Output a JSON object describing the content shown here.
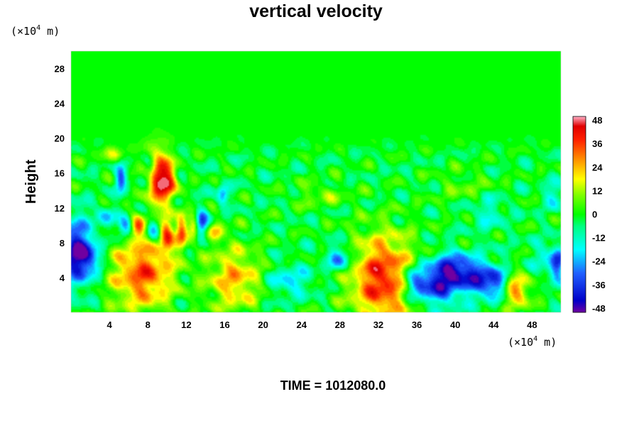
{
  "chart_data": {
    "type": "heatmap",
    "title": "vertical velocity",
    "ylabel": "Height",
    "xlabel": "",
    "y_unit": {
      "prefix": "(×10",
      "exp": "4",
      "suffix": " m)"
    },
    "x_unit": {
      "prefix": "(×10",
      "exp": "4",
      "suffix": " m)"
    },
    "footer": "TIME = 1012080.0",
    "xlim": [
      0,
      51
    ],
    "ylim": [
      0,
      30
    ],
    "x_ticks": [
      4,
      8,
      12,
      16,
      20,
      24,
      28,
      32,
      36,
      40,
      44,
      48
    ],
    "y_ticks": [
      4,
      8,
      12,
      16,
      20,
      24,
      28
    ],
    "colorbar": {
      "range": [
        -50,
        50
      ],
      "ticks": [
        48,
        36,
        24,
        12,
        0,
        -12,
        -24,
        -36,
        -48
      ]
    },
    "features": [
      {
        "x": 7.5,
        "y": 4.5,
        "value": 36,
        "rx": 2.3,
        "ry": 3.0
      },
      {
        "x": 17,
        "y": 3.8,
        "value": 26,
        "rx": 2.0,
        "ry": 2.6
      },
      {
        "x": 32.5,
        "y": 3.8,
        "value": 42,
        "rx": 2.4,
        "ry": 3.6
      },
      {
        "x": 46.3,
        "y": 2.5,
        "value": 30,
        "rx": 1.1,
        "ry": 1.4
      },
      {
        "x": 9,
        "y": 15.5,
        "value": 46,
        "rx": 0.8,
        "ry": 2.2
      },
      {
        "x": 10.3,
        "y": 15,
        "value": 32,
        "rx": 0.6,
        "ry": 1.6
      },
      {
        "x": 7,
        "y": 9.8,
        "value": 32,
        "rx": 0.5,
        "ry": 1.0
      },
      {
        "x": 10,
        "y": 9.0,
        "value": 36,
        "rx": 0.5,
        "ry": 1.5
      },
      {
        "x": 11.5,
        "y": 9.3,
        "value": 32,
        "rx": 0.4,
        "ry": 1.3
      },
      {
        "x": 12.8,
        "y": 9.8,
        "value": 30,
        "rx": 0.4,
        "ry": 1.0
      },
      {
        "x": 15.2,
        "y": 9.2,
        "value": 22,
        "rx": 0.6,
        "ry": 0.8
      },
      {
        "x": 0.5,
        "y": 7.0,
        "value": -40,
        "rx": 1.2,
        "ry": 2.6
      },
      {
        "x": 1.8,
        "y": 6.2,
        "value": -22,
        "rx": 1.0,
        "ry": 1.5
      },
      {
        "x": 5.6,
        "y": 9.8,
        "value": -34,
        "rx": 0.5,
        "ry": 0.9
      },
      {
        "x": 8.6,
        "y": 9.5,
        "value": -30,
        "rx": 0.5,
        "ry": 1.0
      },
      {
        "x": 13.6,
        "y": 10.2,
        "value": -36,
        "rx": 0.5,
        "ry": 1.0
      },
      {
        "x": 5.2,
        "y": 15.5,
        "value": -30,
        "rx": 0.4,
        "ry": 1.2
      },
      {
        "x": 8.2,
        "y": 16.5,
        "value": -20,
        "rx": 0.5,
        "ry": 0.9
      },
      {
        "x": 15.8,
        "y": 13.5,
        "value": -26,
        "rx": 0.4,
        "ry": 0.8
      },
      {
        "x": 38,
        "y": 3.2,
        "value": -38,
        "rx": 1.8,
        "ry": 1.7
      },
      {
        "x": 40,
        "y": 5.0,
        "value": -32,
        "rx": 1.4,
        "ry": 1.3
      },
      {
        "x": 43,
        "y": 3.8,
        "value": -36,
        "rx": 1.4,
        "ry": 1.4
      },
      {
        "x": 35.6,
        "y": 3.5,
        "value": -22,
        "rx": 1.0,
        "ry": 1.2
      },
      {
        "x": 28,
        "y": 6.2,
        "value": -26,
        "rx": 1.0,
        "ry": 1.0
      },
      {
        "x": 22.7,
        "y": 3.6,
        "value": -18,
        "rx": 1.6,
        "ry": 1.2
      },
      {
        "x": 44.6,
        "y": 3.0,
        "value": -16,
        "rx": 0.8,
        "ry": 1.0
      },
      {
        "x": 49.6,
        "y": 6.2,
        "value": -12,
        "rx": 1.2,
        "ry": 1.4
      },
      {
        "x": 50.6,
        "y": 5.5,
        "value": -30,
        "rx": 0.5,
        "ry": 1.2
      },
      {
        "x": 50.3,
        "y": 13.4,
        "value": -16,
        "rx": 0.7,
        "ry": 1.0
      },
      {
        "x": 43.5,
        "y": 11.5,
        "value": -12,
        "rx": 1.2,
        "ry": 1.5
      },
      {
        "x": 26,
        "y": 13.5,
        "value": 10,
        "rx": 2.0,
        "ry": 1.0
      },
      {
        "x": 41,
        "y": 14.5,
        "value": 8,
        "rx": 2.2,
        "ry": 1.3
      },
      {
        "x": 4.5,
        "y": 18,
        "value": 12,
        "rx": 1.3,
        "ry": 0.7
      },
      {
        "x": 3.5,
        "y": 11,
        "value": -16,
        "rx": 0.8,
        "ry": 0.8
      }
    ]
  }
}
